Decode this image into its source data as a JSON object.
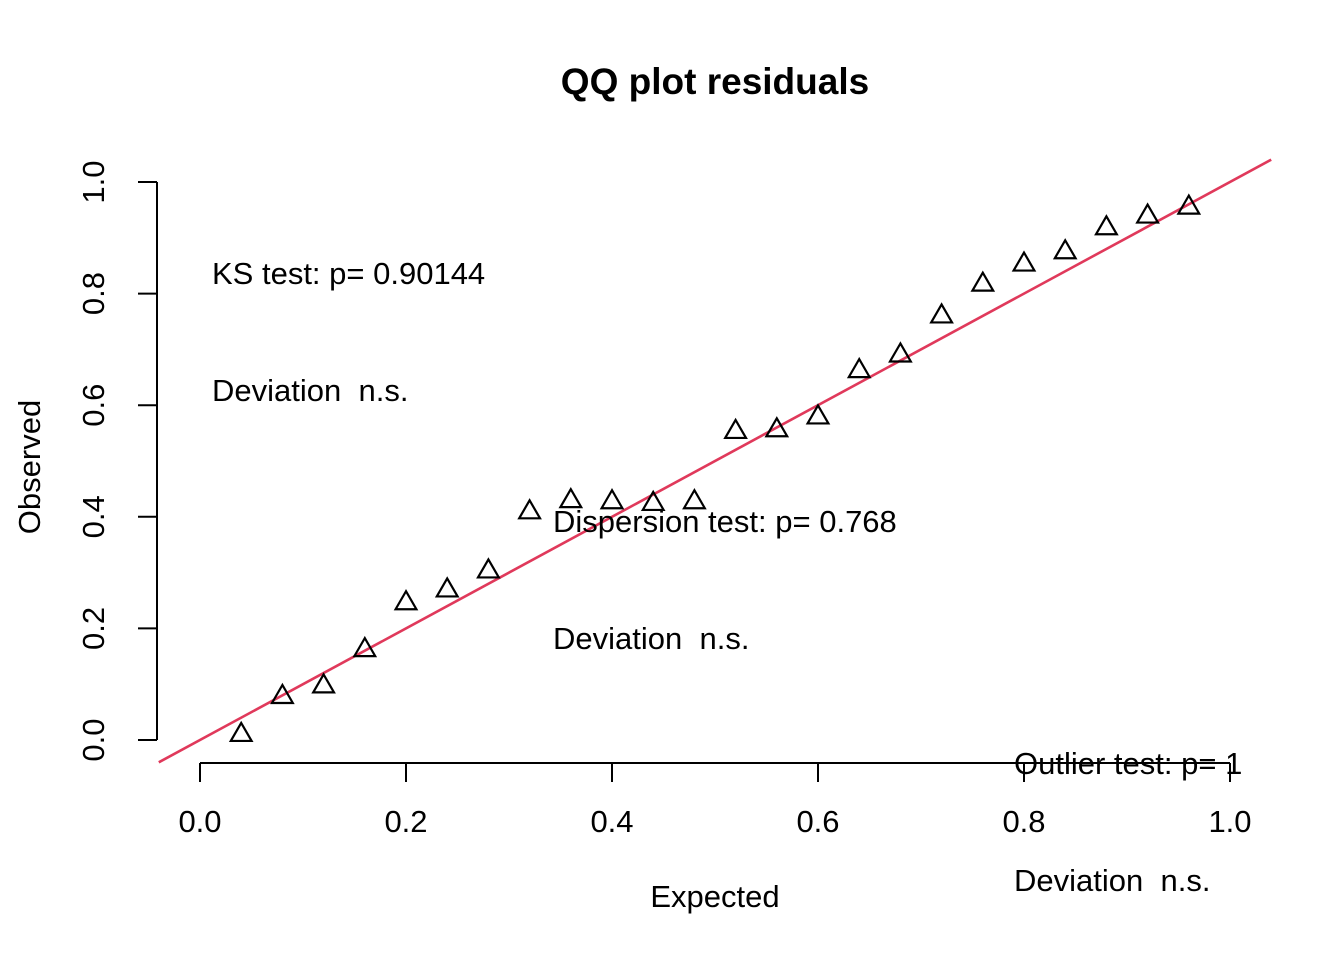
{
  "chart_data": {
    "type": "scatter",
    "subtype": "qq-plot",
    "title": "QQ plot residuals",
    "xlabel": "Expected",
    "ylabel": "Observed",
    "xlim": [
      0,
      1
    ],
    "ylim": [
      0,
      1
    ],
    "grid": false,
    "legend": "none",
    "xticks": {
      "values": [
        0,
        0.2,
        0.4,
        0.6,
        0.8,
        1.0
      ],
      "labels": [
        "0.0",
        "0.2",
        "0.4",
        "0.6",
        "0.8",
        "1.0"
      ]
    },
    "yticks": {
      "values": [
        0,
        0.2,
        0.4,
        0.6,
        0.8,
        1.0
      ],
      "labels": [
        "0.0",
        "0.2",
        "0.4",
        "0.6",
        "0.8",
        "1.0"
      ]
    },
    "marker": "open-triangle",
    "points": {
      "x": [
        0.04,
        0.08,
        0.12,
        0.16,
        0.2,
        0.24,
        0.28,
        0.32,
        0.36,
        0.4,
        0.44,
        0.48,
        0.52,
        0.56,
        0.6,
        0.64,
        0.68,
        0.72,
        0.76,
        0.8,
        0.84,
        0.88,
        0.92,
        0.96
      ],
      "y": [
        0.013,
        0.081,
        0.1,
        0.165,
        0.249,
        0.272,
        0.306,
        0.412,
        0.432,
        0.43,
        0.427,
        0.43,
        0.556,
        0.559,
        0.582,
        0.665,
        0.693,
        0.763,
        0.82,
        0.856,
        0.878,
        0.921,
        0.942,
        0.958
      ]
    },
    "reference_line": {
      "type": "identity",
      "intercept": 0,
      "slope": 1,
      "span": [
        -0.04,
        1.04
      ],
      "color": "#e0395b"
    },
    "annotations": [
      {
        "id": "ks-test",
        "lines": [
          "KS test: p= 0.90144",
          "Deviation  n.s."
        ]
      },
      {
        "id": "dispersion-test",
        "lines": [
          "Dispersion test: p= 0.768",
          "Deviation  n.s."
        ]
      },
      {
        "id": "outlier-test",
        "lines": [
          "Outlier test: p= 1",
          "Deviation  n.s."
        ]
      }
    ],
    "colors": {
      "points": "#000000",
      "axis": "#000000",
      "text": "#000000",
      "line": "#e0395b"
    }
  }
}
